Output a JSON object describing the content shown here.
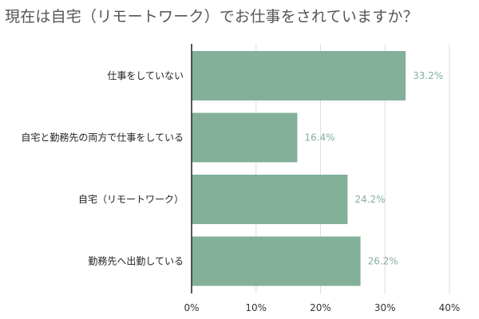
{
  "chart_data": {
    "type": "bar",
    "orientation": "horizontal",
    "title": "現在は自宅（リモートワーク）でお仕事をされていますか？",
    "categories": [
      "仕事をしていない",
      "自宅と勤務先の両方で仕事をしている",
      "自宅（リモートワーク）",
      "勤務先へ出勤している"
    ],
    "values": [
      33.2,
      16.4,
      24.2,
      26.2
    ],
    "value_labels": [
      "33.2%",
      "16.4%",
      "24.2%",
      "26.2%"
    ],
    "xlim": [
      0,
      40
    ],
    "ticks": [
      0,
      10,
      20,
      30,
      40
    ],
    "tick_labels": [
      "0%",
      "10%",
      "20%",
      "30%",
      "40%"
    ],
    "grid": true,
    "legend": "none",
    "bar_color": "#84b09a",
    "label_color": "#84b09a",
    "grid_color": "#dddddd",
    "axis_color": "#222222"
  }
}
